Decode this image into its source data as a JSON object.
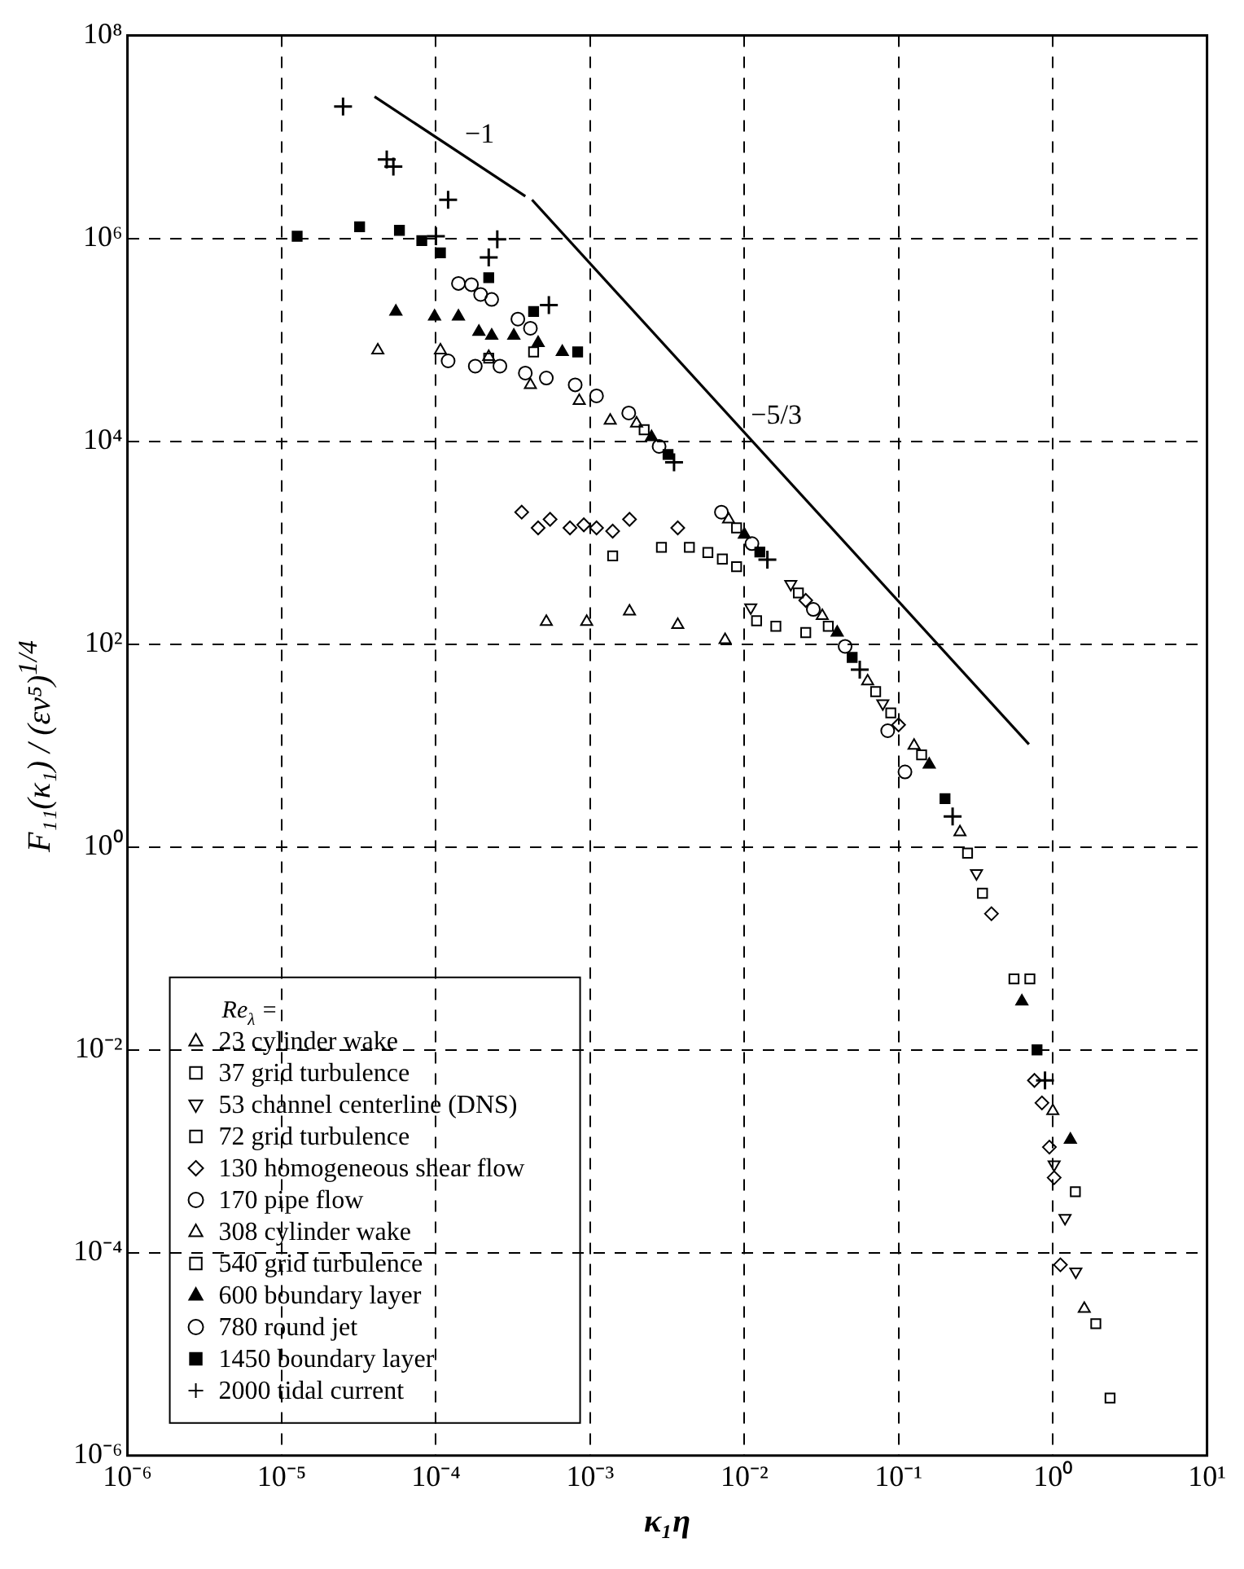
{
  "chart_data": {
    "type": "scatter",
    "xlabel": "κ₁η",
    "ylabel": "F₁₁(κ₁) / (εν⁵)$^{1/4}$",
    "legend_title": "Re$_{λ}$ =",
    "legend": "bottom left",
    "grid": true,
    "log": "xy",
    "xlim": [
      1e-06,
      10
    ],
    "ylim": [
      1e-06,
      100000000.0
    ],
    "xticks": [
      {
        "value": 1e-06,
        "label": "10⁻⁶"
      },
      {
        "value": 1e-05,
        "label": "10⁻⁵"
      },
      {
        "value": 0.0001,
        "label": "10⁻⁴"
      },
      {
        "value": 0.001,
        "label": "10⁻³"
      },
      {
        "value": 0.01,
        "label": "10⁻²"
      },
      {
        "value": 0.1,
        "label": "10⁻¹"
      },
      {
        "value": 1,
        "label": "10⁰"
      },
      {
        "value": 10,
        "label": "10¹"
      }
    ],
    "yticks": [
      {
        "value": 1e-06,
        "label": "10⁻⁶"
      },
      {
        "value": 0.0001,
        "label": "10⁻⁴"
      },
      {
        "value": 0.01,
        "label": "10⁻²"
      },
      {
        "value": 1,
        "label": "10⁰"
      },
      {
        "value": 100,
        "label": "10²"
      },
      {
        "value": 10000.0,
        "label": "10⁴"
      },
      {
        "value": 1000000.0,
        "label": "10⁶"
      },
      {
        "value": 100000000.0,
        "label": "10⁸"
      }
    ],
    "annotations": [
      {
        "text": "−1",
        "x": 0.00014,
        "y": 7100000.0
      },
      {
        "text": "−5/3",
        "x": 0.01,
        "y": 12000.0
      }
    ],
    "series": [
      {
        "name": "23 cylinder wake",
        "color": "#000000",
        "marker": "triangle",
        "x": [
          0.00052,
          0.00095,
          0.0018,
          0.0037,
          0.0075,
          0.063,
          0.25,
          1.0,
          1.6
        ],
        "values": [
          166,
          166,
          210,
          155,
          110,
          43,
          1.4,
          0.0025,
          2.8e-05
        ]
      },
      {
        "name": "37 grid turbulence",
        "color": "#000000",
        "marker": "square",
        "x": [
          0.012,
          0.016,
          0.025,
          0.071,
          0.28,
          0.71,
          1.4,
          1.9,
          2.35
        ],
        "values": [
          170,
          150,
          130,
          34,
          0.87,
          0.05,
          0.0004,
          2e-05,
          3.7e-06
        ]
      },
      {
        "name": "53 channel centerline (DNS)",
        "color": "#000000",
        "marker": "triangle-down",
        "x": [
          0.011,
          0.02,
          0.079,
          0.32,
          1.02,
          1.2,
          1.41
        ],
        "values": [
          230,
          390,
          26,
          0.55,
          0.00074,
          0.00022,
          6.5e-05
        ]
      },
      {
        "name": "72 grid turbulence",
        "color": "#000000",
        "marker": "square",
        "x": [
          0.0014,
          0.0029,
          0.0044,
          0.0058,
          0.0072,
          0.0089,
          0.0224,
          0.089,
          0.35
        ],
        "values": [
          740,
          900,
          900,
          800,
          690,
          580,
          320,
          21,
          0.35
        ]
      },
      {
        "name": "130 homogeneous shear flow",
        "color": "#000000",
        "marker": "diamond",
        "x": [
          0.00036,
          0.00046,
          0.00055,
          0.00074,
          0.00091,
          0.0011,
          0.0014,
          0.0018,
          0.0037,
          0.025,
          0.1,
          0.4,
          0.76,
          0.85,
          0.95,
          1.02,
          1.12
        ],
        "values": [
          2000,
          1400,
          1700,
          1400,
          1500,
          1400,
          1300,
          1700,
          1400,
          270,
          16,
          0.22,
          0.005,
          0.003,
          0.0011,
          0.00055,
          7.6e-05
        ]
      },
      {
        "name": "170 pipe flow",
        "color": "#000000",
        "marker": "circle",
        "x": [
          0.00012,
          0.00018,
          0.00026,
          0.00038,
          0.00052,
          0.0008,
          0.0011,
          0.00178,
          0.0071,
          0.028,
          0.085,
          0.11
        ],
        "values": [
          62000.0,
          55000.0,
          55000.0,
          47000.0,
          42000.0,
          36000.0,
          28000.0,
          19000.0,
          2000,
          220,
          14,
          5.5
        ]
      },
      {
        "name": "308 cylinder wake",
        "color": "#000000",
        "marker": "triangle",
        "x": [
          4.2e-05,
          0.000107,
          0.00022,
          0.00041,
          0.00085,
          0.00135,
          0.002,
          0.0079,
          0.032,
          0.126
        ],
        "values": [
          79000.0,
          79000.0,
          68000.0,
          36000.0,
          25000.0,
          16000.0,
          15000.0,
          1700,
          190,
          10
        ]
      },
      {
        "name": "540 grid turbulence",
        "color": "#000000",
        "marker": "square",
        "x": [
          0.00022,
          0.00043,
          0.00224,
          0.0089,
          0.035,
          0.141,
          0.56
        ],
        "values": [
          66000.0,
          76000.0,
          13000.0,
          1400,
          150,
          8.1,
          0.05
        ]
      },
      {
        "name": "600 boundary layer",
        "color": "#000000",
        "marker": "triangle-filled",
        "x": [
          5.5e-05,
          9.8e-05,
          0.00014,
          0.00019,
          0.00023,
          0.00032,
          0.00046,
          0.00066,
          0.0025,
          0.01,
          0.04,
          0.158,
          0.63,
          1.3
        ],
        "values": [
          190000.0,
          170000.0,
          170000.0,
          120000.0,
          110000.0,
          110000.0,
          93000.0,
          76000.0,
          11000.0,
          1200,
          130,
          6.5,
          0.03,
          0.0013
        ]
      },
      {
        "name": "780 round jet",
        "color": "#000000",
        "marker": "circle",
        "x": [
          0.00014,
          0.00017,
          0.000195,
          0.00023,
          0.00034,
          0.00041,
          0.0028,
          0.0112,
          0.045
        ],
        "values": [
          360000.0,
          350000.0,
          280000.0,
          250000.0,
          160000.0,
          130000.0,
          8900,
          980,
          95
        ]
      },
      {
        "name": "1450 boundary layer",
        "color": "#000000",
        "marker": "square-filled",
        "x": [
          1.26e-05,
          3.2e-05,
          5.8e-05,
          8.1e-05,
          0.000107,
          0.00022,
          0.00043,
          0.00083,
          0.0032,
          0.0126,
          0.05,
          0.2,
          0.79
        ],
        "values": [
          1050000.0,
          1300000.0,
          1200000.0,
          950000.0,
          720000.0,
          410000.0,
          190000.0,
          76000.0,
          7400,
          810,
          74,
          3.0,
          0.01
        ]
      },
      {
        "name": "2000 tidal current",
        "color": "#000000",
        "marker": "cross",
        "x": [
          2.5e-05,
          4.8e-05,
          5.3e-05,
          0.0001,
          0.00012,
          0.00022,
          0.00025,
          0.00054,
          0.0035,
          0.0141,
          0.056,
          0.224,
          0.89
        ],
        "values": [
          20000000.0,
          6000000.0,
          5100000.0,
          1050000.0,
          2400000.0,
          650000.0,
          980000.0,
          220000.0,
          6200,
          680,
          56,
          2.0,
          0.005
        ]
      },
      {
        "type": "line",
        "color": "#000000",
        "line_style": "solid",
        "x": [
          4e-05,
          0.00038
        ],
        "values": [
          25000000.0,
          2600000.0
        ]
      },
      {
        "type": "line",
        "color": "#000000",
        "line_style": "solid",
        "x": [
          0.00042,
          0.7
        ],
        "values": [
          2400000.0,
          10.3
        ]
      }
    ]
  }
}
